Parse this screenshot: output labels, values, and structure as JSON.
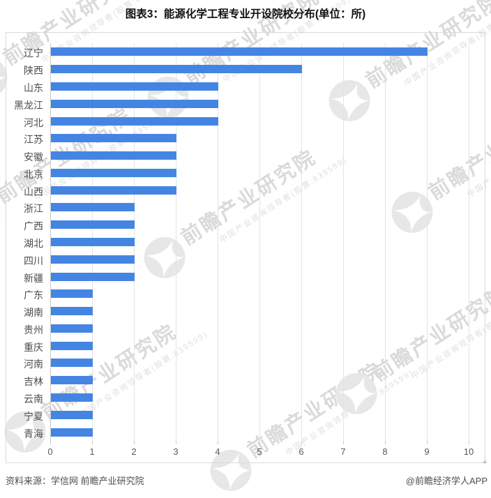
{
  "title": "图表3：能源化学工程专业开设院校分布(单位：所)",
  "footer": {
    "source": "资料来源：学信网 前瞻产业研究院",
    "credit": "@前瞻经济学人APP"
  },
  "watermark": {
    "brand": "前瞻产业研究院",
    "tagline": "中国产业咨询领导者(股票:839599)",
    "icon": "qianzhan-logo-icon"
  },
  "colors": {
    "bar": "#4485e3",
    "gridline": "#e3e3e3",
    "axis_line": "#c9c9c9",
    "frame_border": "#d9d9d9",
    "y_label": "#4d4d4d",
    "x_tick_label": "#595959",
    "watermark_text": "#dadada"
  },
  "chart_data": {
    "type": "bar",
    "orientation": "horizontal",
    "title": "图表3：能源化学工程专业开设院校分布(单位：所)",
    "xlabel": "",
    "ylabel": "",
    "unit": "所",
    "categories": [
      "辽宁",
      "陕西",
      "山东",
      "黑龙江",
      "河北",
      "江苏",
      "安徽",
      "北京",
      "山西",
      "浙江",
      "广西",
      "湖北",
      "四川",
      "新疆",
      "广东",
      "湖南",
      "贵州",
      "重庆",
      "河南",
      "吉林",
      "云南",
      "宁夏",
      "青海"
    ],
    "values": [
      9,
      6,
      4,
      4,
      4,
      3,
      3,
      3,
      3,
      2,
      2,
      2,
      2,
      2,
      1,
      1,
      1,
      1,
      1,
      1,
      1,
      1,
      1
    ],
    "xlim": [
      0,
      10
    ],
    "xticks": [
      0,
      1,
      2,
      3,
      4,
      5,
      6,
      7,
      8,
      9,
      10
    ],
    "grid": true,
    "legend": false
  }
}
